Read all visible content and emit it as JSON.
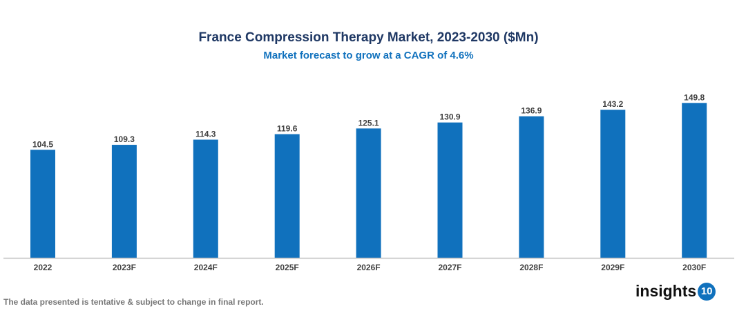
{
  "chart_data": {
    "type": "bar",
    "title": "France Compression Therapy Market, 2023-2030 ($Mn)",
    "subtitle": "Market forecast to grow at a CAGR of 4.6%",
    "categories": [
      "2022",
      "2023F",
      "2024F",
      "2025F",
      "2026F",
      "2027F",
      "2028F",
      "2029F",
      "2030F"
    ],
    "values": [
      104.5,
      109.3,
      114.3,
      119.6,
      125.1,
      130.9,
      136.9,
      143.2,
      149.8
    ],
    "xlabel": "",
    "ylabel": "",
    "ylim": [
      0,
      160
    ],
    "grid": false,
    "bar_color": "#1071bd",
    "data_labels": true
  },
  "footer": {
    "note": "The data presented is tentative & subject to change in final report.",
    "logo_text": "insights",
    "logo_number": "10"
  }
}
